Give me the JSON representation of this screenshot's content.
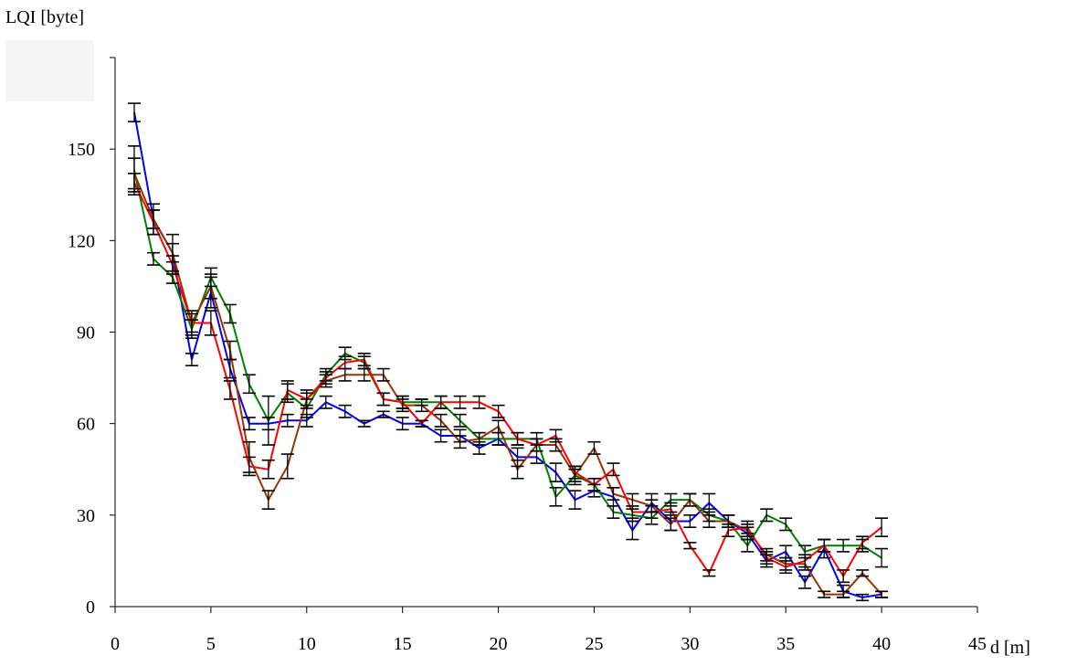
{
  "chart_data": {
    "type": "line",
    "ylabel": "LQI [byte]",
    "xlabel": "d [m]",
    "xlim": [
      0,
      45
    ],
    "ylim": [
      0,
      180
    ],
    "xticks": [
      "0",
      "5",
      "10",
      "15",
      "20",
      "25",
      "30",
      "35",
      "40",
      "45"
    ],
    "yticks": [
      "0",
      "30",
      "60",
      "90",
      "120",
      "150"
    ],
    "grid": false,
    "legend": "none",
    "x": [
      1,
      2,
      3,
      4,
      5,
      6,
      7,
      8,
      9,
      10,
      11,
      12,
      13,
      14,
      15,
      16,
      17,
      18,
      19,
      20,
      21,
      22,
      23,
      24,
      25,
      26,
      27,
      28,
      29,
      30,
      31,
      32,
      33,
      34,
      35,
      36,
      37,
      38,
      39,
      40
    ],
    "series": [
      {
        "color": "#0000ff",
        "values": [
          162,
          127,
          116,
          81,
          103,
          78,
          60,
          60,
          61,
          61,
          67,
          64,
          60,
          63,
          60,
          60,
          56,
          56,
          52,
          55,
          49,
          49,
          44,
          35,
          38,
          36,
          25,
          34,
          28,
          28,
          34,
          28,
          24,
          15,
          18,
          8,
          19,
          5,
          3,
          4
        ],
        "errors": [
          3,
          3,
          3,
          2,
          5,
          3,
          2,
          2,
          2,
          2,
          2,
          2,
          1,
          1,
          2,
          1,
          2,
          2,
          2,
          2,
          3,
          2,
          3,
          3,
          2,
          3,
          3,
          3,
          3,
          2,
          3,
          2,
          2,
          2,
          2,
          2,
          3,
          2,
          1,
          1
        ]
      },
      {
        "color": "#007f00",
        "values": [
          143,
          114,
          108,
          91,
          108,
          96,
          73,
          61,
          70,
          65,
          76,
          83,
          80,
          68,
          67,
          67,
          67,
          61,
          55,
          55,
          55,
          55,
          36,
          43,
          40,
          31,
          30,
          29,
          35,
          35,
          30,
          28,
          20,
          30,
          27,
          18,
          20,
          20,
          20,
          16
        ],
        "errors": [
          8,
          2,
          2,
          3,
          3,
          3,
          3,
          8,
          3,
          3,
          2,
          2,
          2,
          2,
          2,
          1,
          2,
          2,
          2,
          2,
          2,
          2,
          3,
          3,
          2,
          2,
          2,
          2,
          2,
          2,
          2,
          2,
          2,
          2,
          2,
          2,
          2,
          2,
          2,
          3
        ]
      },
      {
        "color": "#993300",
        "values": [
          142,
          127,
          116,
          93,
          105,
          84,
          49,
          35,
          46,
          68,
          74,
          76,
          76,
          76,
          66,
          66,
          61,
          54,
          55,
          59,
          45,
          53,
          53,
          43,
          52,
          37,
          35,
          33,
          27,
          35,
          28,
          28,
          25,
          17,
          14,
          14,
          4,
          4,
          11,
          4
        ],
        "errors": [
          5,
          5,
          6,
          4,
          4,
          3,
          5,
          3,
          4,
          3,
          2,
          2,
          2,
          2,
          2,
          2,
          2,
          2,
          2,
          2,
          3,
          2,
          2,
          2,
          2,
          2,
          2,
          2,
          2,
          2,
          2,
          2,
          2,
          2,
          2,
          2,
          1,
          1,
          1,
          1
        ]
      },
      {
        "color": "#ff0000",
        "values": [
          139,
          126,
          112,
          93,
          93,
          71,
          46,
          45,
          71,
          68,
          75,
          80,
          81,
          68,
          67,
          60,
          67,
          67,
          67,
          64,
          55,
          53,
          56,
          44,
          40,
          45,
          31,
          31,
          32,
          20,
          11,
          25,
          26,
          16,
          13,
          15,
          20,
          10,
          21,
          26
        ],
        "errors": [
          3,
          4,
          3,
          3,
          4,
          3,
          3,
          3,
          3,
          2,
          2,
          2,
          2,
          2,
          2,
          1,
          2,
          2,
          2,
          2,
          2,
          2,
          2,
          2,
          2,
          2,
          2,
          2,
          2,
          1,
          1,
          2,
          2,
          2,
          2,
          2,
          2,
          2,
          2,
          3
        ]
      }
    ]
  }
}
